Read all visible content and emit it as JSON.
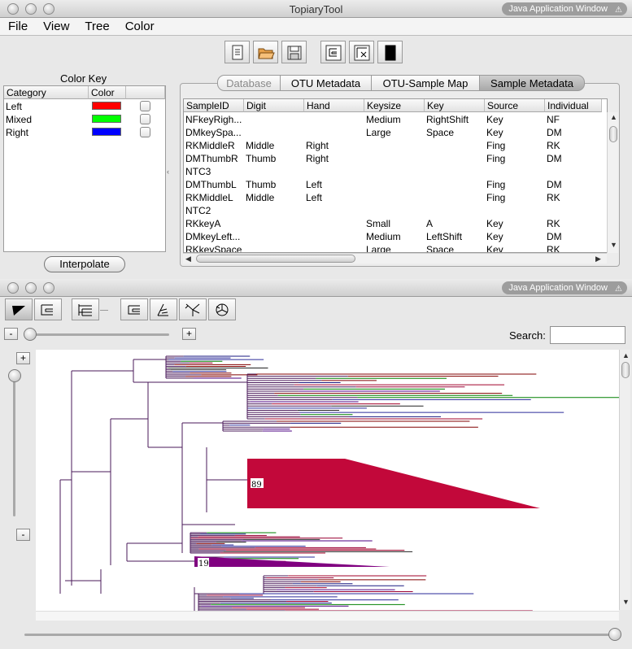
{
  "window1": {
    "title": "TopiaryTool",
    "badge": "Java Application Window"
  },
  "menu": [
    "File",
    "View",
    "Tree",
    "Color"
  ],
  "toolbar_icons": [
    "new-file-icon",
    "open-folder-icon",
    "save-icon",
    "tree-layout-icon",
    "tree-edit-icon",
    "black-panel-icon"
  ],
  "color_key": {
    "title": "Color Key",
    "headers": [
      "Category",
      "Color",
      ""
    ],
    "rows": [
      {
        "category": "Left",
        "color": "#ff0000"
      },
      {
        "category": "Mixed",
        "color": "#00ff00"
      },
      {
        "category": "Right",
        "color": "#0000ff"
      }
    ],
    "interpolate_label": "Interpolate"
  },
  "tabs": [
    "Database",
    "OTU Metadata",
    "OTU-Sample Map",
    "Sample Metadata"
  ],
  "table": {
    "headers": [
      "SampleID",
      "Digit",
      "Hand",
      "Keysize",
      "Key",
      "Source",
      "Individual"
    ],
    "rows": [
      [
        "NFkeyRigh...",
        "",
        "",
        "Medium",
        "RightShift",
        "Key",
        "NF"
      ],
      [
        "DMkeySpa...",
        "",
        "",
        "Large",
        "Space",
        "Key",
        "DM"
      ],
      [
        "RKMiddleR",
        "Middle",
        "Right",
        "",
        "",
        "Fing",
        "RK"
      ],
      [
        "DMThumbR",
        "Thumb",
        "Right",
        "",
        "",
        "Fing",
        "DM"
      ],
      [
        "NTC3",
        "",
        "",
        "",
        "",
        "",
        ""
      ],
      [
        "DMThumbL",
        "Thumb",
        "Left",
        "",
        "",
        "Fing",
        "DM"
      ],
      [
        "RKMiddleL",
        "Middle",
        "Left",
        "",
        "",
        "Fing",
        "RK"
      ],
      [
        "NTC2",
        "",
        "",
        "",
        "",
        "",
        ""
      ],
      [
        "RKkeyA",
        "",
        "",
        "Small",
        "A",
        "Key",
        "RK"
      ],
      [
        "DMkeyLeft...",
        "",
        "",
        "Medium",
        "LeftShift",
        "Key",
        "DM"
      ],
      [
        "RKkeySpace",
        "",
        "",
        "Large",
        "Space",
        "Key",
        "RK"
      ]
    ]
  },
  "window2": {
    "badge": "Java Application Window"
  },
  "tree_toolbar_icons": [
    "collapse-icon",
    "rectangular-tree-icon",
    "list-tree-icon",
    "rect-layout-icon",
    "slanted-layout-icon",
    "radial-layout-icon",
    "circular-layout-icon"
  ],
  "zoom": {
    "minus": "-",
    "plus": "+"
  },
  "search": {
    "label": "Search:",
    "value": ""
  },
  "collapsed_clades": [
    {
      "label": "89",
      "color": "#c2083a"
    },
    {
      "label": "19",
      "color": "#800080"
    }
  ]
}
